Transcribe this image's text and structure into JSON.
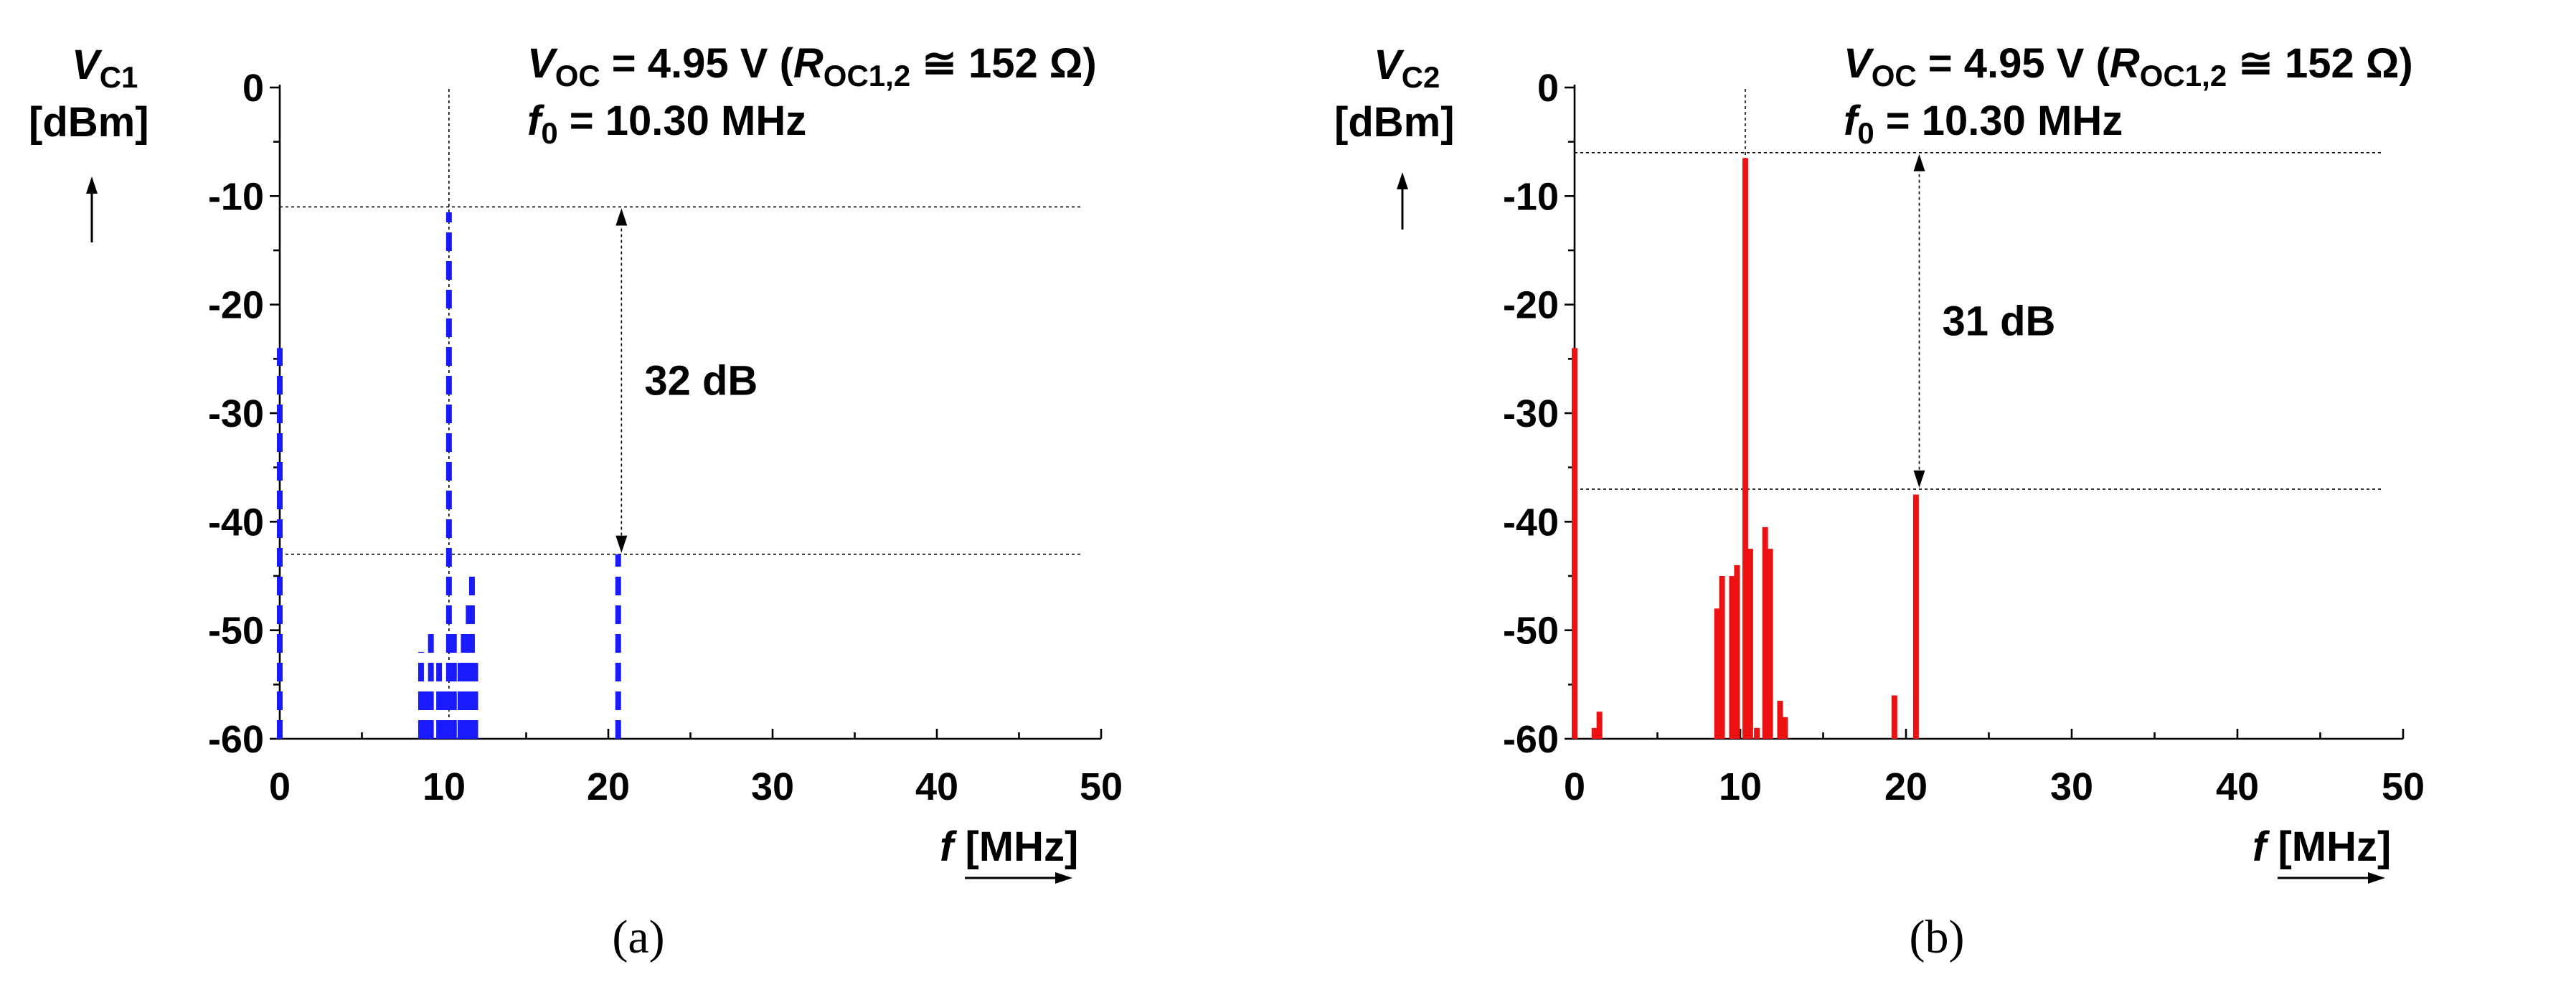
{
  "chart_data": [
    {
      "type": "line",
      "panel_label": "(a)",
      "ylabel_var": "V",
      "ylabel_sub": "C1",
      "ylabel_unit": "[dBm]",
      "xlabel_var": "f",
      "xlabel_unit": "[MHz]",
      "xlim": [
        0,
        50
      ],
      "ylim": [
        -60,
        0
      ],
      "xticks": [
        0,
        10,
        20,
        30,
        40,
        50
      ],
      "yticks": [
        0,
        -10,
        -20,
        -30,
        -40,
        -50,
        -60
      ],
      "grid": false,
      "legend": "none",
      "annotation": {
        "v_main": "V",
        "v_sub": "OC",
        "value": " = 4.95 V (",
        "r_main": "R",
        "r_sub": "OC1,2",
        "r_value": " ≅ 152 Ω)",
        "f_main": "f",
        "f_sub": "0",
        "f_value": " = 10.30 MHz"
      },
      "level_top_dbm": -11,
      "level_bottom_dbm": -43,
      "fundamental_mhz": 10.3,
      "difference_label": "32 dB",
      "difference_arrow_x_mhz": 20.8,
      "series": [
        {
          "color": "#1a1aff",
          "dashed": true,
          "spikes": [
            {
              "x": 0.0,
              "y": -24
            },
            {
              "x": 8.6,
              "y": -52
            },
            {
              "x": 8.9,
              "y": -55
            },
            {
              "x": 9.2,
              "y": -50
            },
            {
              "x": 9.7,
              "y": -53
            },
            {
              "x": 10.0,
              "y": -55
            },
            {
              "x": 10.3,
              "y": -11.5
            },
            {
              "x": 10.6,
              "y": -50
            },
            {
              "x": 11.0,
              "y": -53
            },
            {
              "x": 11.2,
              "y": -50
            },
            {
              "x": 11.5,
              "y": -47
            },
            {
              "x": 11.7,
              "y": -45
            },
            {
              "x": 11.9,
              "y": -53
            },
            {
              "x": 20.6,
              "y": -43
            }
          ]
        }
      ]
    },
    {
      "type": "line",
      "panel_label": "(b)",
      "ylabel_var": "V",
      "ylabel_sub": "C2",
      "ylabel_unit": "[dBm]",
      "xlabel_var": "f",
      "xlabel_unit": "[MHz]",
      "xlim": [
        0,
        50
      ],
      "ylim": [
        -60,
        0
      ],
      "xticks": [
        0,
        10,
        20,
        30,
        40,
        50
      ],
      "yticks": [
        0,
        -10,
        -20,
        -30,
        -40,
        -50,
        -60
      ],
      "grid": false,
      "legend": "none",
      "annotation": {
        "v_main": "V",
        "v_sub": "OC",
        "value": " = 4.95 V (",
        "r_main": "R",
        "r_sub": "OC1,2",
        "r_value": " ≅ 152 Ω)",
        "f_main": "f",
        "f_sub": "0",
        "f_value": " = 10.30 MHz"
      },
      "level_top_dbm": -6,
      "level_bottom_dbm": -37,
      "fundamental_mhz": 10.3,
      "difference_label": "31 dB",
      "difference_arrow_x_mhz": 20.8,
      "series": [
        {
          "color": "#ee1111",
          "dashed": false,
          "spikes": [
            {
              "x": 0.0,
              "y": -24
            },
            {
              "x": 1.2,
              "y": -59
            },
            {
              "x": 1.5,
              "y": -57.5
            },
            {
              "x": 8.6,
              "y": -48
            },
            {
              "x": 8.9,
              "y": -45
            },
            {
              "x": 9.5,
              "y": -45
            },
            {
              "x": 9.8,
              "y": -44
            },
            {
              "x": 10.3,
              "y": -6.5
            },
            {
              "x": 10.6,
              "y": -42.5
            },
            {
              "x": 11.0,
              "y": -59
            },
            {
              "x": 11.5,
              "y": -40.5
            },
            {
              "x": 11.8,
              "y": -42.5
            },
            {
              "x": 12.4,
              "y": -56.5
            },
            {
              "x": 12.7,
              "y": -58
            },
            {
              "x": 19.3,
              "y": -56
            },
            {
              "x": 20.6,
              "y": -37.5
            }
          ]
        }
      ]
    }
  ]
}
